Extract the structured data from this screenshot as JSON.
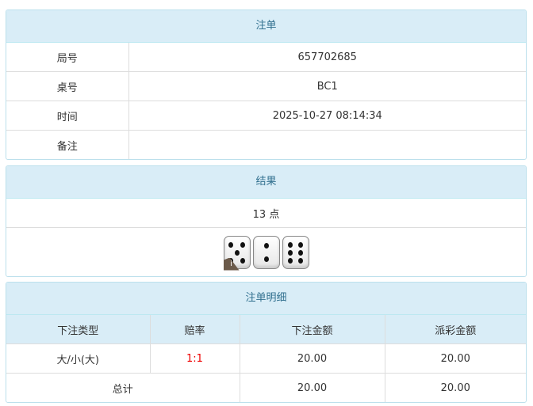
{
  "order": {
    "title": "注单",
    "rows": [
      {
        "label": "局号",
        "value": "657702685"
      },
      {
        "label": "桌号",
        "value": "BC1"
      },
      {
        "label": "时间",
        "value": "2025-10-27 08:14:34"
      },
      {
        "label": "备注",
        "value": ""
      }
    ]
  },
  "result": {
    "title": "结果",
    "points": "13 点",
    "dice": [
      5,
      2,
      6
    ],
    "info_icon": "i"
  },
  "detail": {
    "title": "注单明细",
    "headers": [
      "下注类型",
      "赔率",
      "下注金额",
      "派彩金额"
    ],
    "rows": [
      {
        "type": "大/小(大)",
        "odds": "1:1",
        "bet": "20.00",
        "payout": "20.00"
      }
    ],
    "total": {
      "label": "总计",
      "bet": "20.00",
      "payout": "20.00"
    },
    "odds_color": "#e00000"
  }
}
